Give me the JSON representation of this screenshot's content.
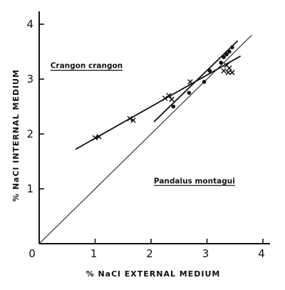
{
  "chart_data": {
    "type": "scatter",
    "xlabel": "% NaCl EXTERNAL MEDIUM",
    "ylabel": "% NaCl INTERNAL MEDIUM",
    "xlim": [
      0,
      4
    ],
    "ylim": [
      0,
      4
    ],
    "xticks": [
      "0",
      "1",
      "2",
      "3",
      "4"
    ],
    "yticks": [
      "1",
      "2",
      "3",
      "4"
    ],
    "grid": false,
    "legend": "none",
    "annotations": [
      {
        "text": "Crangon crangon",
        "x": 0.2,
        "y": 3.2,
        "underline": true
      },
      {
        "text": "Pandalus montagui",
        "x": 2.05,
        "y": 1.1,
        "underline": true
      }
    ],
    "lines": [
      {
        "role": "isosmotic",
        "points": [
          [
            0,
            0
          ],
          [
            3.8,
            3.8
          ]
        ]
      },
      {
        "role": "crangon-fit",
        "points": [
          [
            0.65,
            1.72
          ],
          [
            3.6,
            3.42
          ]
        ]
      },
      {
        "role": "pandalus-fit",
        "points": [
          [
            2.05,
            2.22
          ],
          [
            3.55,
            3.7
          ]
        ]
      }
    ],
    "series": [
      {
        "marker": "x",
        "points": [
          [
            1.0,
            1.93
          ],
          [
            1.07,
            1.95
          ],
          [
            1.62,
            2.28
          ],
          [
            1.68,
            2.25
          ],
          [
            2.25,
            2.65
          ],
          [
            2.32,
            2.7
          ],
          [
            2.37,
            2.63
          ],
          [
            2.7,
            2.95
          ],
          [
            3.3,
            3.15
          ],
          [
            3.38,
            3.12
          ],
          [
            3.45,
            3.12
          ],
          [
            3.35,
            3.25
          ],
          [
            3.4,
            3.2
          ]
        ]
      },
      {
        "marker": "dot",
        "points": [
          [
            2.4,
            2.5
          ],
          [
            2.68,
            2.75
          ],
          [
            2.95,
            2.95
          ],
          [
            3.05,
            3.15
          ],
          [
            3.25,
            3.3
          ],
          [
            3.3,
            3.4
          ],
          [
            3.35,
            3.45
          ],
          [
            3.4,
            3.5
          ],
          [
            3.45,
            3.58
          ]
        ]
      }
    ]
  }
}
